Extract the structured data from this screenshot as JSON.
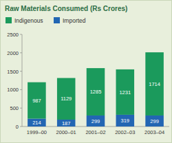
{
  "chart_data": {
    "type": "bar",
    "title": "Raw Materials Consumed (Rs Crores)",
    "categories": [
      "1999–00",
      "2000–01",
      "2001–02",
      "2002–03",
      "2003–04"
    ],
    "series": [
      {
        "name": "Indigenous",
        "color": "#1b9a5c",
        "values": [
          987,
          1129,
          1285,
          1231,
          1714
        ]
      },
      {
        "name": "Imported",
        "color": "#2266b3",
        "values": [
          214,
          187,
          299,
          319,
          299
        ]
      }
    ],
    "stacked": true,
    "data_labels": true,
    "legend": "top",
    "grid": false,
    "ylim": [
      0,
      2500
    ],
    "yticks": [
      0,
      500,
      1000,
      1500,
      2000,
      2500
    ]
  }
}
